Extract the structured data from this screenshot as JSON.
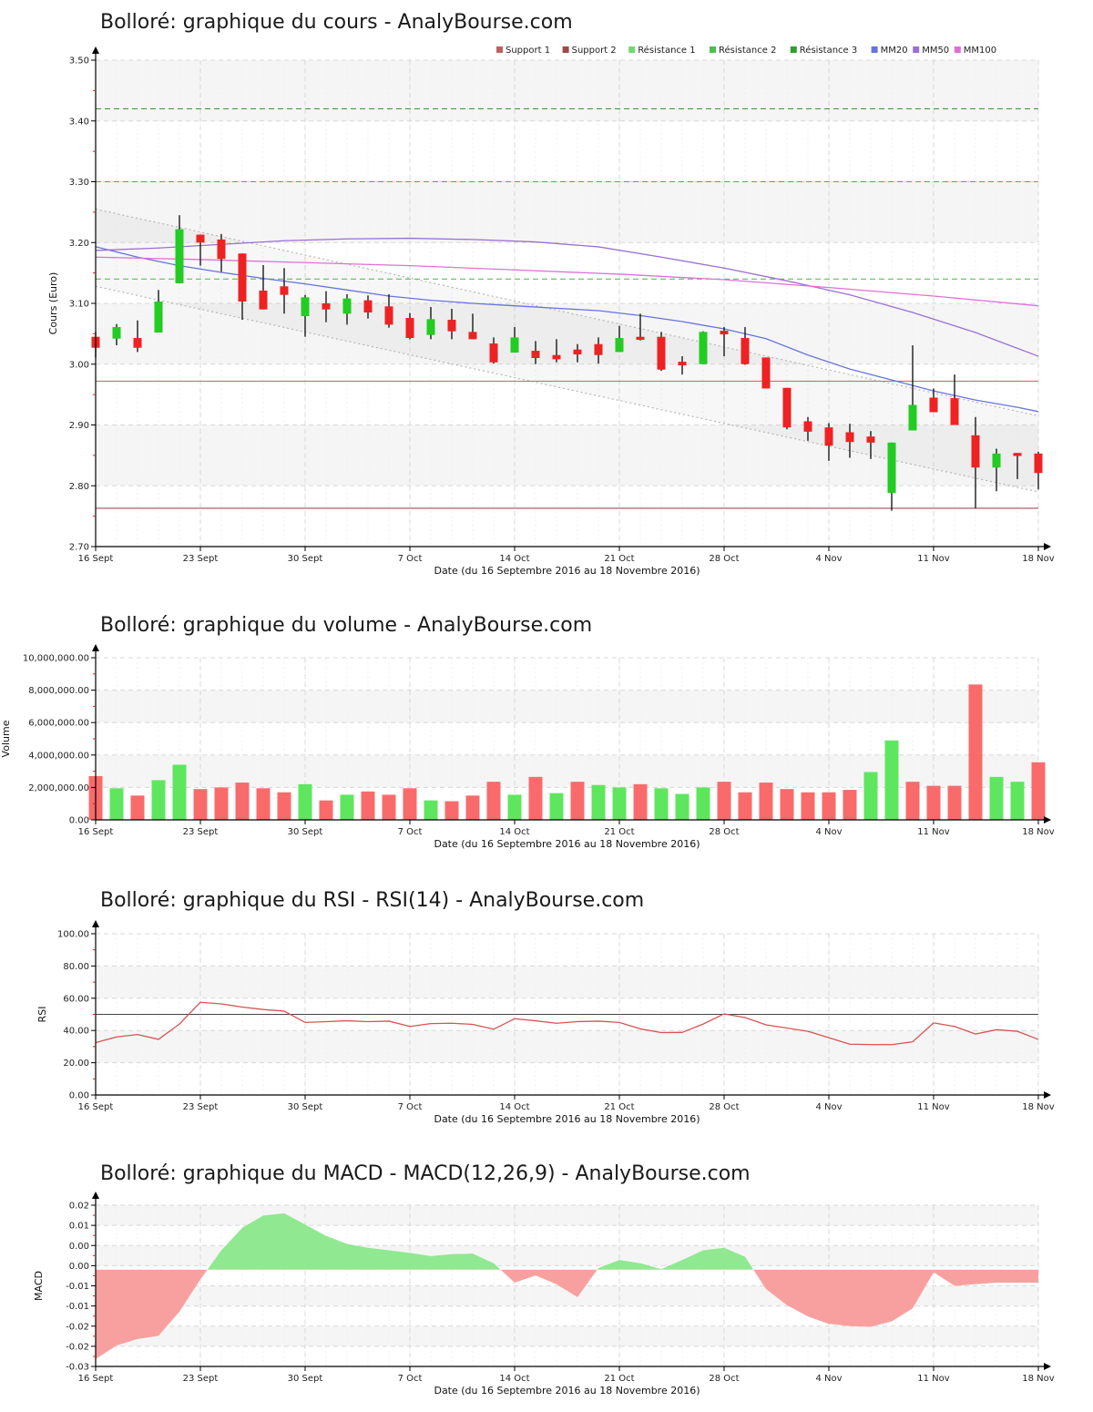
{
  "shared_x": {
    "axis_label": "Date (du 16 Septembre 2016 au 18 Novembre 2016)",
    "tick_labels": [
      "16 Sept",
      "23 Sept",
      "30 Sept",
      "7 Oct",
      "14 Oct",
      "21 Oct",
      "28 Oct",
      "4 Nov",
      "11 Nov",
      "18 Nov"
    ],
    "tick_day_indices": [
      0,
      5,
      10,
      15,
      20,
      25,
      30,
      35,
      40,
      45
    ]
  },
  "charts": {
    "price": {
      "title": "Bolloré: graphique du cours - AnalyBourse.com",
      "ylabel": "Cours (Euro)",
      "yticks": [
        "3.50",
        "3.40",
        "3.30",
        "3.20",
        "3.10",
        "3.00",
        "2.90",
        "2.80",
        "2.70"
      ],
      "legend": [
        {
          "label": "Support 1",
          "color": "#bf6060"
        },
        {
          "label": "Support 2",
          "color": "#9e4a4a"
        },
        {
          "label": "Résistance 1",
          "color": "#6fd86f"
        },
        {
          "label": "Résistance 2",
          "color": "#4cbf4c"
        },
        {
          "label": "Résistance 3",
          "color": "#2f9e2f"
        },
        {
          "label": "MM20",
          "color": "#6673e0"
        },
        {
          "label": "MM50",
          "color": "#9a6fd6"
        },
        {
          "label": "MM100",
          "color": "#e070d8"
        }
      ]
    },
    "volume": {
      "title": "Bolloré: graphique du volume - AnalyBourse.com",
      "ylabel": "Volume",
      "yticks": [
        "10,000,000.00",
        "8,000,000.00",
        "6,000,000.00",
        "4,000,000.00",
        "2,000,000.00",
        "0.00"
      ]
    },
    "rsi": {
      "title": "Bolloré: graphique du RSI - RSI(14) - AnalyBourse.com",
      "ylabel": "RSI",
      "yticks": [
        "100.00",
        "80.00",
        "60.00",
        "40.00",
        "20.00",
        "0.00"
      ]
    },
    "macd": {
      "title": "Bolloré: graphique du MACD - MACD(12,26,9) - AnalyBourse.com",
      "ylabel": "MACD",
      "yticks": [
        "0.02",
        "0.01",
        "0.00",
        "0.00",
        "-0.01",
        "-0.01",
        "-0.02",
        "-0.02",
        "-0.03"
      ]
    }
  },
  "chart_data": [
    {
      "type": "candlestick",
      "title": "Bolloré: graphique du cours - AnalyBourse.com",
      "xlabel": "Date (du 16 Septembre 2016 au 18 Novembre 2016)",
      "ylabel": "Cours (Euro)",
      "ylim": [
        2.7,
        3.5
      ],
      "ytick_vals": [
        3.5,
        3.4,
        3.3,
        3.2,
        3.1,
        3.0,
        2.9,
        2.8,
        2.7
      ],
      "dates": [
        "16/09",
        "19/09",
        "20/09",
        "21/09",
        "22/09",
        "23/09",
        "26/09",
        "27/09",
        "28/09",
        "29/09",
        "30/09",
        "03/10",
        "04/10",
        "05/10",
        "06/10",
        "07/10",
        "10/10",
        "11/10",
        "12/10",
        "13/10",
        "14/10",
        "17/10",
        "18/10",
        "19/10",
        "20/10",
        "21/10",
        "24/10",
        "25/10",
        "26/10",
        "27/10",
        "28/10",
        "31/10",
        "01/11",
        "02/11",
        "03/11",
        "04/11",
        "07/11",
        "08/11",
        "09/11",
        "10/11",
        "11/11",
        "14/11",
        "15/11",
        "16/11",
        "17/11",
        "18/11"
      ],
      "open": [
        3.045,
        3.042,
        3.043,
        3.052,
        3.133,
        3.213,
        3.205,
        3.182,
        3.121,
        3.128,
        3.079,
        3.1,
        3.083,
        3.105,
        3.095,
        3.076,
        3.048,
        3.073,
        3.053,
        3.034,
        3.019,
        3.022,
        3.015,
        3.024,
        3.033,
        3.02,
        3.045,
        3.045,
        3.004,
        3.0,
        3.055,
        3.043,
        3.011,
        2.961,
        2.906,
        2.896,
        2.888,
        2.881,
        2.788,
        2.891,
        2.945,
        2.944,
        2.883,
        2.83,
        2.854,
        2.853
      ],
      "high": [
        3.053,
        3.066,
        3.072,
        3.122,
        3.245,
        3.213,
        3.214,
        3.182,
        3.163,
        3.158,
        3.114,
        3.12,
        3.115,
        3.113,
        3.115,
        3.084,
        3.094,
        3.091,
        3.083,
        3.044,
        3.061,
        3.038,
        3.041,
        3.033,
        3.044,
        3.063,
        3.083,
        3.053,
        3.013,
        3.054,
        3.061,
        3.061,
        3.011,
        2.961,
        2.913,
        2.903,
        2.902,
        2.89,
        2.871,
        3.031,
        2.96,
        2.983,
        2.913,
        2.861,
        2.854,
        2.856
      ],
      "low": [
        3.011,
        3.031,
        3.02,
        3.052,
        3.133,
        3.162,
        3.152,
        3.073,
        3.09,
        3.083,
        3.045,
        3.069,
        3.065,
        3.075,
        3.06,
        3.041,
        3.041,
        3.041,
        3.041,
        3.001,
        3.019,
        3.0,
        3.003,
        3.003,
        3.001,
        3.02,
        3.039,
        2.989,
        2.983,
        3.0,
        3.013,
        2.999,
        2.96,
        2.893,
        2.874,
        2.841,
        2.846,
        2.844,
        2.759,
        2.891,
        2.921,
        2.9,
        2.763,
        2.791,
        2.811,
        2.794
      ],
      "close": [
        3.027,
        3.061,
        3.027,
        3.103,
        3.222,
        3.2,
        3.173,
        3.103,
        3.09,
        3.114,
        3.11,
        3.09,
        3.108,
        3.085,
        3.065,
        3.043,
        3.074,
        3.054,
        3.041,
        3.003,
        3.044,
        3.01,
        3.008,
        3.016,
        3.015,
        3.043,
        3.04,
        2.991,
        2.998,
        3.053,
        3.049,
        3.0,
        2.96,
        2.896,
        2.889,
        2.866,
        2.872,
        2.871,
        2.871,
        2.933,
        2.921,
        2.9,
        2.83,
        2.853,
        2.849,
        2.821
      ],
      "up_color": "#22cc22",
      "down_color": "#ee2222",
      "supports": [
        {
          "name": "Support 1",
          "value": 2.972,
          "color": "#c97272"
        },
        {
          "name": "Support 2",
          "value": 2.763,
          "color": "#a34f4f"
        }
      ],
      "resistances": [
        {
          "name": "Résistance 1",
          "value": 3.14,
          "color": "#5bbf5b"
        },
        {
          "name": "Résistance 2",
          "value": 3.3,
          "color": "#4cb04c"
        },
        {
          "name": "Résistance 3",
          "value": 3.42,
          "color": "#3f9e3f"
        }
      ],
      "mm20": [
        [
          1,
          3.193
        ],
        [
          3,
          3.176
        ],
        [
          5,
          3.162
        ],
        [
          7,
          3.151
        ],
        [
          9,
          3.141
        ],
        [
          11,
          3.132
        ],
        [
          13,
          3.122
        ],
        [
          15,
          3.112
        ],
        [
          17,
          3.105
        ],
        [
          19,
          3.1
        ],
        [
          21,
          3.096
        ],
        [
          23,
          3.092
        ],
        [
          25,
          3.088
        ],
        [
          27,
          3.08
        ],
        [
          29,
          3.07
        ],
        [
          31,
          3.058
        ],
        [
          33,
          3.042
        ],
        [
          35,
          3.015
        ],
        [
          37,
          2.992
        ],
        [
          39,
          2.974
        ],
        [
          41,
          2.956
        ],
        [
          43,
          2.941
        ],
        [
          45,
          2.929
        ],
        [
          46,
          2.922
        ]
      ],
      "mm50": [
        [
          1,
          3.187
        ],
        [
          4,
          3.191
        ],
        [
          7,
          3.197
        ],
        [
          10,
          3.203
        ],
        [
          13,
          3.206
        ],
        [
          16,
          3.207
        ],
        [
          19,
          3.205
        ],
        [
          22,
          3.201
        ],
        [
          25,
          3.193
        ],
        [
          28,
          3.176
        ],
        [
          31,
          3.158
        ],
        [
          34,
          3.137
        ],
        [
          37,
          3.114
        ],
        [
          40,
          3.085
        ],
        [
          43,
          3.052
        ],
        [
          46,
          3.013
        ]
      ],
      "mm100": [
        [
          1,
          3.176
        ],
        [
          6,
          3.172
        ],
        [
          11,
          3.167
        ],
        [
          16,
          3.162
        ],
        [
          21,
          3.155
        ],
        [
          26,
          3.148
        ],
        [
          31,
          3.139
        ],
        [
          36,
          3.126
        ],
        [
          41,
          3.112
        ],
        [
          46,
          3.096
        ]
      ],
      "mm_colors": {
        "mm20": "#6673e0",
        "mm50": "#9a6fd6",
        "mm100": "#e070d8"
      },
      "channel": {
        "upper": [
          3.255,
          2.915
        ],
        "lower": [
          3.128,
          2.79
        ],
        "color": "#b5b5b5"
      }
    },
    {
      "type": "bar",
      "title": "Bolloré: graphique du volume - AnalyBourse.com",
      "xlabel": "Date (du 16 Septembre 2016 au 18 Novembre 2016)",
      "ylabel": "Volume",
      "ylim": [
        0,
        10000000
      ],
      "ytick_vals": [
        10000000,
        8000000,
        6000000,
        4000000,
        2000000,
        0
      ],
      "values": [
        2700000,
        1950000,
        1500000,
        2450000,
        3400000,
        1900000,
        2000000,
        2300000,
        1950000,
        1700000,
        2200000,
        1200000,
        1550000,
        1750000,
        1550000,
        1950000,
        1200000,
        1150000,
        1500000,
        2350000,
        1550000,
        2650000,
        1650000,
        2350000,
        2150000,
        2000000,
        2200000,
        1950000,
        1600000,
        2000000,
        2350000,
        1700000,
        2300000,
        1900000,
        1700000,
        1700000,
        1850000,
        2950000,
        4900000,
        2350000,
        2100000,
        2100000,
        8350000,
        2650000,
        2350000,
        3550000
      ],
      "direction": [
        "d",
        "u",
        "d",
        "u",
        "u",
        "d",
        "d",
        "d",
        "d",
        "d",
        "u",
        "d",
        "u",
        "d",
        "d",
        "d",
        "u",
        "d",
        "d",
        "d",
        "u",
        "d",
        "u",
        "d",
        "u",
        "u",
        "d",
        "u",
        "u",
        "u",
        "d",
        "d",
        "d",
        "d",
        "d",
        "d",
        "d",
        "u",
        "u",
        "d",
        "d",
        "d",
        "d",
        "u",
        "u",
        "d"
      ],
      "up_color": "#5fe65f",
      "down_color": "#f96b6b"
    },
    {
      "type": "line",
      "title": "Bolloré: graphique du RSI - RSI(14) - AnalyBourse.com",
      "xlabel": "Date (du 16 Septembre 2016 au 18 Novembre 2016)",
      "ylabel": "RSI",
      "ylim": [
        0,
        100
      ],
      "ytick_vals": [
        100,
        80,
        60,
        40,
        20,
        0
      ],
      "refline": 50,
      "values": [
        32.5,
        36,
        37.5,
        34.5,
        44,
        57.5,
        56.5,
        54.5,
        53,
        52,
        45,
        45.5,
        46,
        45.5,
        45.8,
        42.5,
        44.3,
        44.5,
        43.8,
        40.8,
        47.3,
        46,
        44.5,
        45.5,
        45.8,
        45,
        41,
        38.7,
        38.8,
        44,
        50.3,
        48,
        43.5,
        41.5,
        39.5,
        35.5,
        31.5,
        31.3,
        31.2,
        33,
        44.7,
        42.5,
        37.8,
        40.5,
        39.5,
        34.5
      ],
      "line_color": "#d95454"
    },
    {
      "type": "area",
      "title": "Bolloré: graphique du MACD - MACD(12,26,9) - AnalyBourse.com",
      "xlabel": "Date (du 16 Septembre 2016 au 18 Novembre 2016)",
      "ylabel": "MACD",
      "ylim": [
        -0.03,
        0.02
      ],
      "ytick_vals": [
        0.02,
        0.01375,
        0.0075,
        0.00125,
        -0.005,
        -0.01125,
        -0.0175,
        -0.02375,
        -0.03
      ],
      "values": [
        -0.0277,
        -0.0235,
        -0.0215,
        -0.0205,
        -0.013,
        -0.003,
        0.006,
        0.013,
        0.0168,
        0.0175,
        0.014,
        0.0105,
        0.008,
        0.0068,
        0.006,
        0.0052,
        0.0042,
        0.0048,
        0.005,
        0.002,
        -0.004,
        -0.0018,
        -0.0045,
        -0.0085,
        0.0005,
        0.003,
        0.002,
        0.0002,
        0.003,
        0.006,
        0.0068,
        0.004,
        -0.006,
        -0.011,
        -0.0145,
        -0.0168,
        -0.0175,
        -0.0177,
        -0.016,
        -0.012,
        -0.0008,
        -0.005,
        -0.0045,
        -0.004,
        -0.004,
        -0.004
      ],
      "pos_color": "#90e890",
      "neg_color": "#f8a0a0"
    }
  ],
  "style_colors": {
    "band_gray": "#f5f5f5",
    "grid_major": "#d8d8d8",
    "grid_daily": "#f0f0f0",
    "axis": "#000000",
    "minor_tick": "#cc2222"
  }
}
